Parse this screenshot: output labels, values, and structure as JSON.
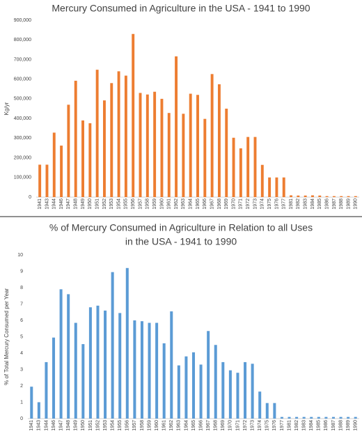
{
  "chart_data": [
    {
      "type": "bar",
      "title": "Mercury Consumed in Agriculture in the USA - 1941 to 1990",
      "xlabel": "",
      "ylabel": "Kg/yr",
      "ylim": [
        0,
        900000
      ],
      "yticks": [
        "0",
        "100,000",
        "200,000",
        "300,000",
        "400,000",
        "500,000",
        "600,000",
        "700,000",
        "800,000",
        "900,000"
      ],
      "grid": false,
      "color": "#ED7D31",
      "categories": [
        "1941",
        "1943",
        "1944",
        "1946",
        "1947",
        "1948",
        "1949",
        "1950",
        "1951",
        "1952",
        "1953",
        "1954",
        "1955",
        "1956",
        "1957",
        "1958",
        "1959",
        "1960",
        "1961",
        "1962",
        "1963",
        "1964",
        "1965",
        "1966",
        "1967",
        "1968",
        "1969",
        "1970",
        "1971",
        "1972",
        "1973",
        "1974",
        "1975",
        "1976",
        "1977",
        "1981",
        "1982",
        "1983",
        "1984",
        "1985",
        "1986",
        "1987",
        "1988",
        "1989",
        "1990"
      ],
      "values": [
        165000,
        165000,
        328000,
        262000,
        470000,
        592000,
        390000,
        376000,
        648000,
        492000,
        580000,
        640000,
        618000,
        830000,
        530000,
        522000,
        536000,
        500000,
        428000,
        716000,
        424000,
        526000,
        520000,
        398000,
        626000,
        574000,
        450000,
        302000,
        248000,
        306000,
        306000,
        164000,
        100000,
        100000,
        100000,
        9000,
        8000,
        8000,
        9000,
        8000,
        5000,
        5000,
        5000,
        5000,
        5000
      ]
    },
    {
      "type": "bar",
      "title": "% of Mercury Consumed in Agriculture in Relation to all Uses in the USA - 1941 to 1990",
      "title_lines": [
        "% of Mercury Consumed in Agriculture in Relation to all Uses",
        "in the USA - 1941 to 1990"
      ],
      "xlabel": "",
      "ylabel": "% of Total Mercury Consumed per Year",
      "ylim": [
        0,
        10
      ],
      "yticks": [
        "0",
        "1",
        "2",
        "3",
        "4",
        "5",
        "6",
        "7",
        "8",
        "9",
        "10"
      ],
      "grid": false,
      "color": "#5B9BD5",
      "categories": [
        "1941",
        "1943",
        "1944",
        "1946",
        "1947",
        "1948",
        "1949",
        "1950",
        "1951",
        "1952",
        "1953",
        "1954",
        "1955",
        "1956",
        "1957",
        "1958",
        "1959",
        "1960",
        "1961",
        "1962",
        "1963",
        "1964",
        "1965",
        "1966",
        "1967",
        "1968",
        "1969",
        "1970",
        "1971",
        "1972",
        "1973",
        "1974",
        "1975",
        "1976",
        "1977",
        "1981",
        "1982",
        "1983",
        "1984",
        "1985",
        "1986",
        "1987",
        "1988",
        "1989",
        "1990"
      ],
      "values": [
        1.95,
        1.0,
        3.45,
        4.95,
        7.9,
        7.6,
        5.85,
        4.55,
        6.8,
        6.9,
        6.6,
        8.95,
        6.45,
        9.2,
        6.0,
        5.95,
        5.85,
        5.85,
        4.6,
        6.55,
        3.25,
        3.8,
        4.05,
        3.3,
        5.35,
        4.5,
        3.45,
        2.95,
        2.8,
        3.45,
        3.35,
        1.65,
        0.95,
        0.95,
        0.1,
        0.1,
        0.1,
        0.1,
        0.1,
        0.1,
        0.1,
        0.1,
        0.1,
        0.1,
        0.1
      ]
    }
  ]
}
